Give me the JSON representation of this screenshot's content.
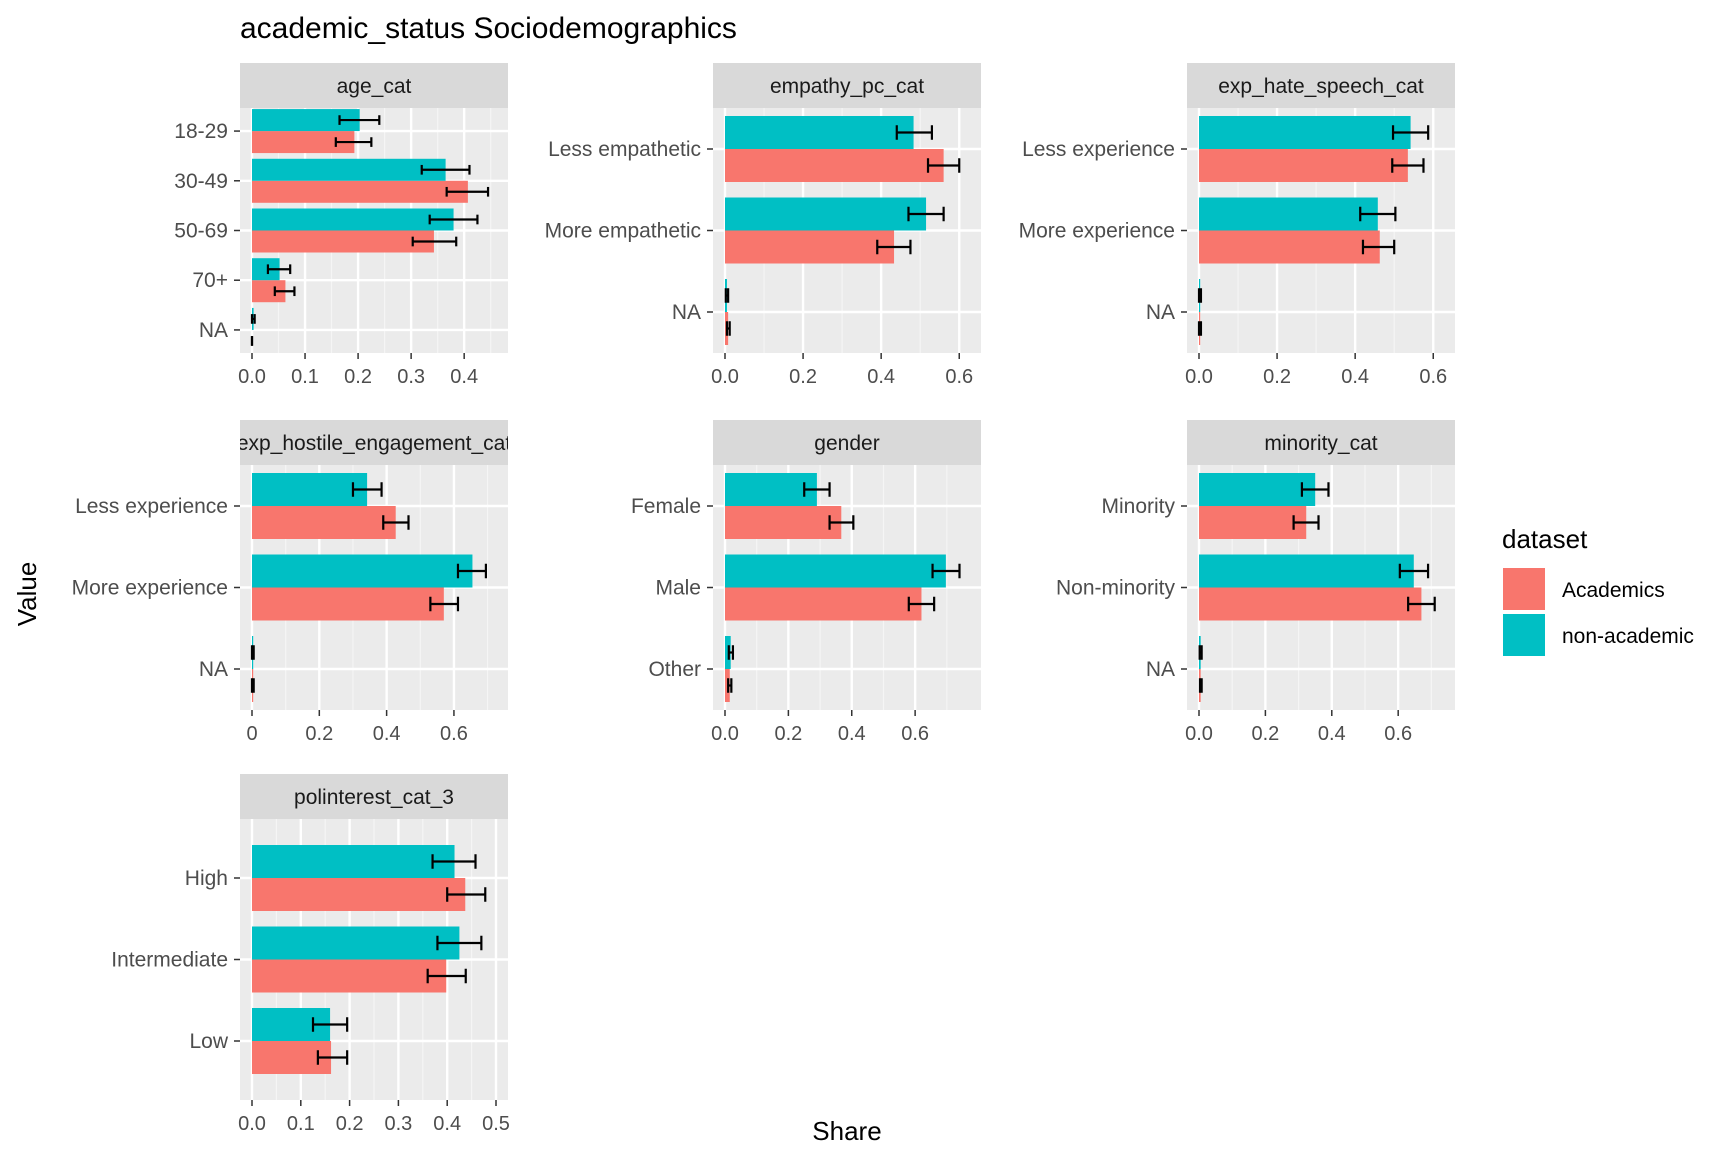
{
  "title": "academic_status Sociodemographics",
  "xlabel": "Share",
  "ylabel": "Value",
  "legend": {
    "title": "dataset",
    "placement": "right",
    "items": [
      {
        "name": "Academics",
        "color": "#F8766D"
      },
      {
        "name": "non-academic",
        "color": "#00BFC4"
      }
    ]
  },
  "chart_data": [
    {
      "type": "bar",
      "orientation": "horizontal",
      "facet": "age_cat",
      "categories": [
        "18-29",
        "30-49",
        "50-69",
        "70+",
        "NA"
      ],
      "xlim": [
        0,
        0.46
      ],
      "xticks": [
        "0.0",
        "0.1",
        "0.2",
        "0.3",
        "0.4"
      ],
      "xtick_values": [
        0,
        0.1,
        0.2,
        0.3,
        0.4
      ],
      "series": [
        {
          "name": "Academics",
          "values": [
            0.193,
            0.407,
            0.343,
            0.063,
            0.0
          ],
          "err_low": [
            0.158,
            0.367,
            0.303,
            0.043,
            0.0
          ],
          "err_high": [
            0.225,
            0.445,
            0.385,
            0.08,
            0.0
          ]
        },
        {
          "name": "non-academic",
          "values": [
            0.203,
            0.365,
            0.38,
            0.052,
            0.003
          ],
          "err_low": [
            0.165,
            0.32,
            0.335,
            0.03,
            0.0
          ],
          "err_high": [
            0.24,
            0.41,
            0.425,
            0.072,
            0.005
          ]
        }
      ]
    },
    {
      "type": "bar",
      "orientation": "horizontal",
      "facet": "empathy_pc_cat",
      "categories": [
        "Less empathetic",
        "More empathetic",
        "NA"
      ],
      "xlim": [
        0,
        0.625
      ],
      "xticks": [
        "0.0",
        "0.2",
        "0.4",
        "0.6"
      ],
      "xtick_values": [
        0,
        0.2,
        0.4,
        0.6
      ],
      "series": [
        {
          "name": "Academics",
          "values": [
            0.56,
            0.433,
            0.008
          ],
          "err_low": [
            0.52,
            0.39,
            0.005
          ],
          "err_high": [
            0.6,
            0.475,
            0.012
          ]
        },
        {
          "name": "non-academic",
          "values": [
            0.483,
            0.515,
            0.005
          ],
          "err_low": [
            0.44,
            0.47,
            0.002
          ],
          "err_high": [
            0.53,
            0.56,
            0.008
          ]
        }
      ]
    },
    {
      "type": "bar",
      "orientation": "horizontal",
      "facet": "exp_hate_speech_cat",
      "categories": [
        "Less experience",
        "More experience",
        "NA"
      ],
      "xlim": [
        0,
        0.625
      ],
      "xticks": [
        "0.0",
        "0.2",
        "0.4",
        "0.6"
      ],
      "xtick_values": [
        0,
        0.2,
        0.4,
        0.6
      ],
      "series": [
        {
          "name": "Academics",
          "values": [
            0.535,
            0.463,
            0.003
          ],
          "err_low": [
            0.495,
            0.42,
            0.0
          ],
          "err_high": [
            0.575,
            0.5,
            0.005
          ]
        },
        {
          "name": "non-academic",
          "values": [
            0.542,
            0.458,
            0.003
          ],
          "err_low": [
            0.497,
            0.413,
            0.0
          ],
          "err_high": [
            0.587,
            0.503,
            0.005
          ]
        }
      ]
    },
    {
      "type": "bar",
      "orientation": "horizontal",
      "facet": "exp_hostile_engagement_cat",
      "categories": [
        "Less experience",
        "More experience",
        "NA"
      ],
      "xlim": [
        0,
        0.725
      ],
      "xticks": [
        "0",
        "0.2",
        "0.4",
        "0.6"
      ],
      "xtick_values": [
        0,
        0.2,
        0.4,
        0.6
      ],
      "series": [
        {
          "name": "Academics",
          "values": [
            0.427,
            0.57,
            0.003
          ],
          "err_low": [
            0.39,
            0.53,
            0.0
          ],
          "err_high": [
            0.465,
            0.612,
            0.005
          ]
        },
        {
          "name": "non-academic",
          "values": [
            0.342,
            0.655,
            0.003
          ],
          "err_low": [
            0.3,
            0.612,
            0.0
          ],
          "err_high": [
            0.385,
            0.695,
            0.005
          ]
        }
      ]
    },
    {
      "type": "bar",
      "orientation": "horizontal",
      "facet": "gender",
      "categories": [
        "Female",
        "Male",
        "Other"
      ],
      "xlim": [
        0,
        0.77
      ],
      "xticks": [
        "0.0",
        "0.2",
        "0.4",
        "0.6"
      ],
      "xtick_values": [
        0,
        0.2,
        0.4,
        0.6
      ],
      "series": [
        {
          "name": "Academics",
          "values": [
            0.367,
            0.62,
            0.015
          ],
          "err_low": [
            0.33,
            0.58,
            0.01
          ],
          "err_high": [
            0.405,
            0.66,
            0.02
          ]
        },
        {
          "name": "non-academic",
          "values": [
            0.29,
            0.697,
            0.018
          ],
          "err_low": [
            0.25,
            0.655,
            0.012
          ],
          "err_high": [
            0.33,
            0.74,
            0.025
          ]
        }
      ]
    },
    {
      "type": "bar",
      "orientation": "horizontal",
      "facet": "minority_cat",
      "categories": [
        "Minority",
        "Non-minority",
        "NA"
      ],
      "xlim": [
        0,
        0.735
      ],
      "xticks": [
        "0.0",
        "0.2",
        "0.4",
        "0.6"
      ],
      "xtick_values": [
        0,
        0.2,
        0.4,
        0.6
      ],
      "series": [
        {
          "name": "Academics",
          "values": [
            0.323,
            0.67,
            0.005
          ],
          "err_low": [
            0.285,
            0.63,
            0.003
          ],
          "err_high": [
            0.36,
            0.71,
            0.008
          ]
        },
        {
          "name": "non-academic",
          "values": [
            0.35,
            0.647,
            0.005
          ],
          "err_low": [
            0.31,
            0.605,
            0.002
          ],
          "err_high": [
            0.39,
            0.69,
            0.008
          ]
        }
      ]
    },
    {
      "type": "bar",
      "orientation": "horizontal",
      "facet": "polinterest_cat_3",
      "categories": [
        "High",
        "Intermediate",
        "Low"
      ],
      "xlim": [
        0,
        0.5
      ],
      "xticks": [
        "0.0",
        "0.1",
        "0.2",
        "0.3",
        "0.4",
        "0.5"
      ],
      "xtick_values": [
        0,
        0.1,
        0.2,
        0.3,
        0.4,
        0.5
      ],
      "series": [
        {
          "name": "Academics",
          "values": [
            0.437,
            0.398,
            0.162
          ],
          "err_low": [
            0.4,
            0.36,
            0.135
          ],
          "err_high": [
            0.478,
            0.438,
            0.195
          ]
        },
        {
          "name": "non-academic",
          "values": [
            0.415,
            0.425,
            0.16
          ],
          "err_low": [
            0.37,
            0.38,
            0.125
          ],
          "err_high": [
            0.458,
            0.47,
            0.195
          ]
        }
      ]
    }
  ]
}
